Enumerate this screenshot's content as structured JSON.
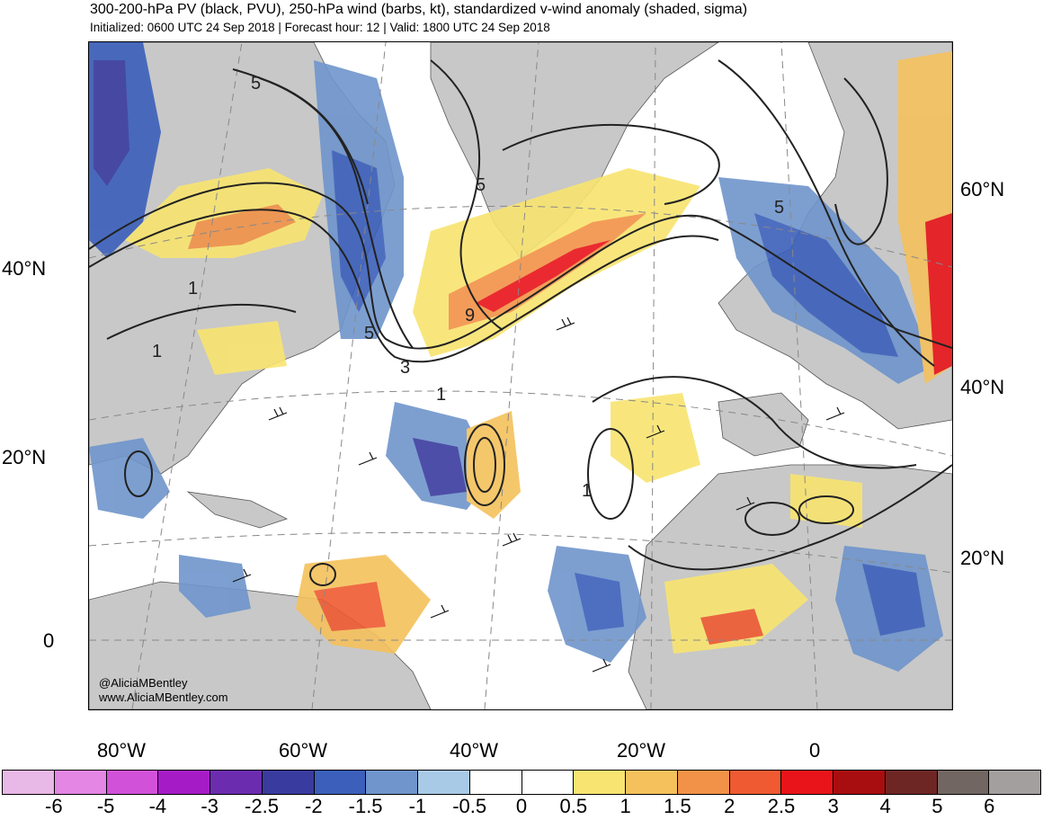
{
  "header": {
    "title": "300-200-hPa PV (black, PVU), 250-hPa wind (barbs, kt), standardized v-wind anomaly (shaded, sigma)",
    "subtitle": "Initialized: 0600 UTC 24 Sep 2018 | Forecast hour: 12 | Valid: 1800 UTC 24 Sep 2018"
  },
  "map": {
    "left_lat_labels": [
      "40°N",
      "20°N",
      "0"
    ],
    "right_lat_labels": [
      "60°N",
      "40°N",
      "20°N"
    ],
    "lon_labels": [
      "80°W",
      "60°W",
      "40°W",
      "20°W",
      "0"
    ],
    "contour_labels": [
      "5",
      "5",
      "5",
      "5",
      "1",
      "1",
      "1",
      "9",
      "3",
      "1"
    ],
    "credit_handle": "@AliciaMBentley",
    "credit_site": "www.AliciaMBentley.com",
    "colors": {
      "land": "#c8c8c8",
      "ocean": "#ffffff",
      "contour": "#222222"
    }
  },
  "colorbar": {
    "colors": [
      "#e8b8e6",
      "#e386e4",
      "#d152d8",
      "#a51cc6",
      "#6c2cb0",
      "#3a3b9e",
      "#3b5fba",
      "#6f95cc",
      "#a9cae6",
      "#ffffff",
      "#ffffff",
      "#f8e470",
      "#f5c15c",
      "#f29248",
      "#ef5a32",
      "#e8141a",
      "#a80e10",
      "#6e2624",
      "#726663",
      "#a39f9f"
    ],
    "tick_labels": [
      "-6",
      "-5",
      "-4",
      "-3",
      "-2.5",
      "-2",
      "-1.5",
      "-1",
      "-0.5",
      "0",
      "0.5",
      "1",
      "1.5",
      "2",
      "2.5",
      "3",
      "4",
      "5",
      "6"
    ]
  }
}
